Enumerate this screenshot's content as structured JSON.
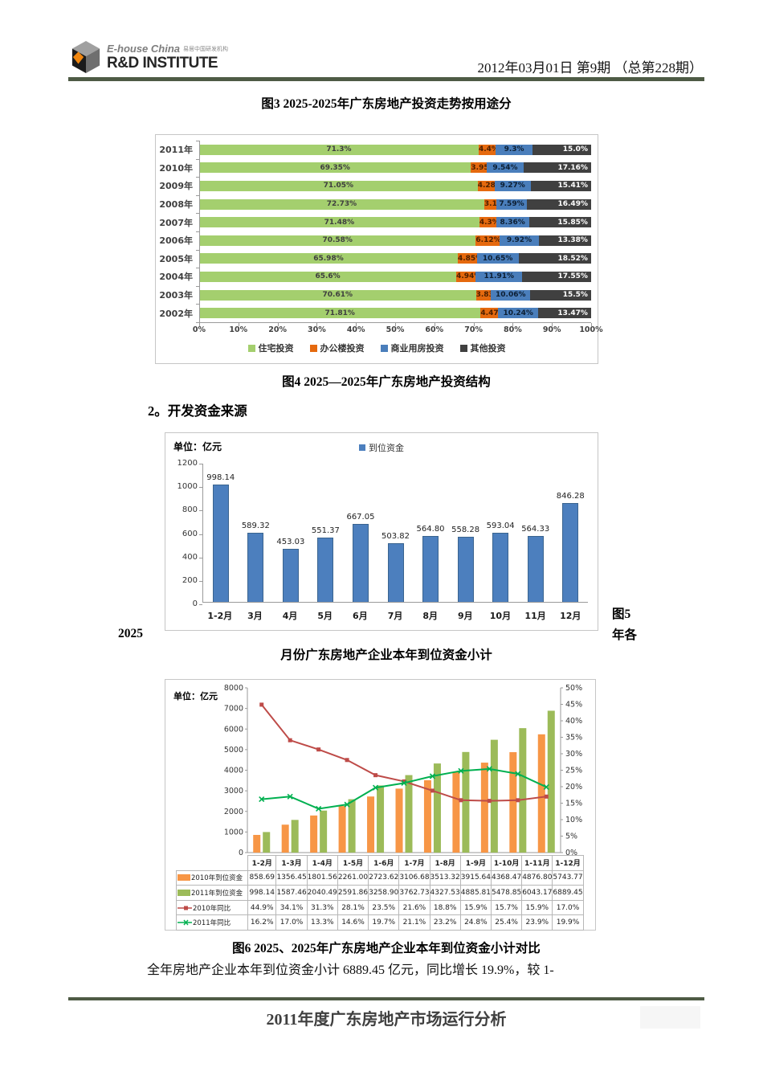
{
  "header": {
    "logo_en": "E-house China",
    "logo_cn": "易居中国研发机构",
    "logo_sub": "R&D INSTITUTE",
    "issue_line": "2012年03月01日  第9期 （总第228期）"
  },
  "captions": {
    "fig3": "图3  2025-2025年广东房地产投资走势按用途分",
    "fig4": "图4  2025—2025年广东房地产投资结构",
    "section2": "2。开发资金来源",
    "fig5_right_top": "图5",
    "fig5_right_bottom": "年各",
    "fig5_left": "2025",
    "fig5_line2": "月份广东房地产企业本年到位资金小计",
    "fig6": "图6  2025、2025年广东房地产企业本年到位资金小计对比",
    "body_paragraph": "全年房地产企业本年到位资金小计 6889.45 亿元，同比增长 19.9%，较 1-",
    "footer_title": "2011年度广东房地产市场运行分析"
  },
  "chart_data": [
    {
      "type": "bar",
      "orientation": "horizontal",
      "stacked": true,
      "title": "图3 2025-2025年广东房地产投资走势按用途分",
      "categories": [
        "2011年",
        "2010年",
        "2009年",
        "2008年",
        "2007年",
        "2006年",
        "2005年",
        "2004年",
        "2003年",
        "2002年"
      ],
      "xlim": [
        0,
        100
      ],
      "x_ticks": [
        "0%",
        "10%",
        "20%",
        "30%",
        "40%",
        "50%",
        "60%",
        "70%",
        "80%",
        "90%",
        "100%"
      ],
      "legend_position": "bottom",
      "series": [
        {
          "name": "住宅投资",
          "color": "#a4cf6e",
          "label_color": "#3f3f3f",
          "values": [
            71.3,
            69.35,
            71.05,
            72.73,
            71.48,
            70.58,
            65.98,
            65.6,
            70.61,
            71.81
          ],
          "labels": [
            "71.3%",
            "69.35%",
            "71.05%",
            "72.73%",
            "71.48%",
            "70.58%",
            "65.98%",
            "65.6%",
            "70.61%",
            "71.81%"
          ]
        },
        {
          "name": "办公楼投资",
          "color": "#e5690e",
          "label_color": "#4a1f00",
          "values": [
            4.4,
            3.95,
            4.28,
            3.19,
            4.3,
            6.12,
            4.85,
            4.94,
            3.83,
            4.47
          ],
          "labels": [
            "4.4%",
            "3.95%",
            "4.28%",
            "3.19%",
            "4.3%",
            "6.12%",
            "4.85%",
            "4.94%",
            "3.83%",
            "4.47%"
          ]
        },
        {
          "name": "商业用房投资",
          "color": "#4a7ebb",
          "label_color": "#0d1f33",
          "values": [
            9.3,
            9.54,
            9.27,
            7.59,
            8.36,
            9.92,
            10.65,
            11.91,
            10.06,
            10.24
          ],
          "labels": [
            "9.3%",
            "9.54%",
            "9.27%",
            "7.59%",
            "8.36%",
            "9.92%",
            "10.65%",
            "11.91%",
            "10.06%",
            "10.24%"
          ]
        },
        {
          "name": "其他投资",
          "color": "#404040",
          "label_color": "#ffffff",
          "values": [
            15.0,
            17.16,
            15.41,
            16.49,
            15.85,
            13.38,
            18.52,
            17.55,
            15.5,
            13.47
          ],
          "labels": [
            "15.0%",
            "17.16%",
            "15.41%",
            "16.49%",
            "15.85%",
            "13.38%",
            "18.52%",
            "17.55%",
            "15.5%",
            "13.47%"
          ]
        }
      ]
    },
    {
      "type": "bar",
      "unit_label": "单位：亿元",
      "legend": [
        {
          "name": "到位资金",
          "color": "#4c7fbe"
        }
      ],
      "categories": [
        "1-2月",
        "3月",
        "4月",
        "5月",
        "6月",
        "7月",
        "8月",
        "9月",
        "10月",
        "11月",
        "12月"
      ],
      "values": [
        998.14,
        589.32,
        453.03,
        551.37,
        667.05,
        503.82,
        564.8,
        558.28,
        593.04,
        564.33,
        846.28
      ],
      "value_labels": [
        "998.14",
        "589.32",
        "453.03",
        "551.37",
        "667.05",
        "503.82",
        "564.80",
        "558.28",
        "593.04",
        "564.33",
        "846.28"
      ],
      "bar_color": "#4c7fbe",
      "ylim": [
        0,
        1200
      ],
      "y_ticks": [
        0,
        200,
        400,
        600,
        800,
        1000,
        1200
      ]
    },
    {
      "type": "combo",
      "unit_label": "单位：亿元",
      "categories": [
        "1-2月",
        "1-3月",
        "1-4月",
        "1-5月",
        "1-6月",
        "1-7月",
        "1-8月",
        "1-9月",
        "1-10月",
        "1-11月",
        "1-12月"
      ],
      "left_ylim": [
        0,
        8000
      ],
      "left_y_ticks": [
        0,
        1000,
        2000,
        3000,
        4000,
        5000,
        6000,
        7000,
        8000
      ],
      "right_ylim": [
        0,
        50
      ],
      "right_y_ticks": [
        "0%",
        "5%",
        "10%",
        "15%",
        "20%",
        "25%",
        "30%",
        "35%",
        "40%",
        "45%",
        "50%"
      ],
      "bar_series": [
        {
          "name": "2010年到位资金",
          "color": "#f79646",
          "values": [
            858.69,
            1356.45,
            1801.56,
            2261.0,
            2723.62,
            3106.68,
            3513.32,
            3915.64,
            4368.47,
            4876.8,
            5743.77
          ],
          "display": [
            "858.69",
            "1356.45",
            "1801.56",
            "2261.00",
            "2723.62",
            "3106.68",
            "3513.32",
            "3915.64",
            "4368.47",
            "4876.80",
            "5743.77"
          ]
        },
        {
          "name": "2011年到位资金",
          "color": "#9cbb59",
          "values": [
            998.14,
            1587.46,
            2040.49,
            2591.86,
            3258.9,
            3762.73,
            4327.53,
            4885.81,
            5478.85,
            6043.17,
            6889.45
          ],
          "display": [
            "998.14",
            "1587.46",
            "2040.49",
            "2591.86",
            "3258.90",
            "3762.73",
            "4327.53",
            "4885.81",
            "5478.85",
            "6043.17",
            "6889.45"
          ]
        }
      ],
      "line_series": [
        {
          "name": "2010年同比",
          "color": "#be4b48",
          "marker": "square",
          "values": [
            44.9,
            34.1,
            31.3,
            28.1,
            23.5,
            21.6,
            18.8,
            15.9,
            15.7,
            15.9,
            17.0
          ],
          "display": [
            "44.9%",
            "34.1%",
            "31.3%",
            "28.1%",
            "23.5%",
            "21.6%",
            "18.8%",
            "15.9%",
            "15.7%",
            "15.9%",
            "17.0%"
          ]
        },
        {
          "name": "2011年同比",
          "color": "#00b050",
          "marker": "x",
          "values": [
            16.2,
            17.0,
            13.3,
            14.6,
            19.7,
            21.1,
            23.2,
            24.8,
            25.4,
            23.9,
            19.9
          ],
          "display": [
            "16.2%",
            "17.0%",
            "13.3%",
            "14.6%",
            "19.7%",
            "21.1%",
            "23.2%",
            "24.8%",
            "25.4%",
            "23.9%",
            "19.9%"
          ]
        }
      ]
    }
  ]
}
